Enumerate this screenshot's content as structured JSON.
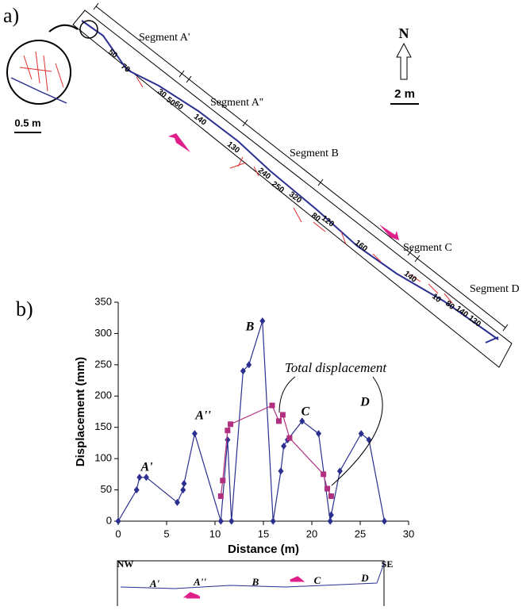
{
  "panel_a": {
    "label": "a)",
    "segments": [
      "Segment A'",
      "Segment A''",
      "Segment B",
      "Segment C",
      "Segment D"
    ],
    "north": "N",
    "scale": "2 m",
    "inset_scale": "0.5 m",
    "offsets": [
      "50",
      "70",
      "30",
      "50",
      "60",
      "140",
      "130",
      "240",
      "250",
      "320",
      "80",
      "120",
      "160",
      "140",
      "10",
      "80",
      "140",
      "130"
    ]
  },
  "panel_b_label": "b)",
  "profile": {
    "ends": [
      "NW",
      "SE"
    ],
    "segments": [
      "A'",
      "A''",
      "B",
      "C",
      "D"
    ]
  },
  "chart_data": {
    "type": "line",
    "x_label": "Distance (m)",
    "y_label": "Displacement (mm)",
    "annotations": [
      "A'",
      "A''",
      "B",
      "C",
      "D",
      "Total displacement"
    ],
    "xlim": [
      0,
      30
    ],
    "xticks": [
      0,
      5,
      10,
      15,
      20,
      25,
      30
    ],
    "ylim": [
      0,
      350
    ],
    "yticks": [
      0,
      50,
      100,
      150,
      200,
      250,
      300,
      350
    ],
    "series": [
      {
        "color": "#2b2f8f",
        "marker": "diamond",
        "x": [
          0,
          1.9,
          2.2,
          2.9,
          6.1,
          6.7,
          6.8,
          7.9,
          10.6,
          11.3,
          11.7,
          12.9,
          13.5,
          14.9,
          16.0,
          16.8,
          17.1,
          17.5,
          19.0,
          20.7,
          21.9,
          22.0,
          22.9,
          25.1,
          25.9,
          27.5
        ],
        "values": [
          0,
          50,
          70,
          70,
          30,
          50,
          60,
          140,
          0,
          130,
          0,
          240,
          250,
          320,
          0,
          80,
          120,
          130,
          160,
          140,
          0,
          10,
          80,
          140,
          130,
          0
        ]
      },
      {
        "color": "#b0307f",
        "marker": "square",
        "x": [
          10.6,
          10.8,
          11.3,
          11.6,
          15.9,
          16.6,
          17.0,
          17.7,
          21.2,
          21.6,
          22.0
        ],
        "values": [
          40,
          65,
          145,
          155,
          185,
          160,
          170,
          133,
          75,
          52,
          40
        ]
      }
    ]
  }
}
